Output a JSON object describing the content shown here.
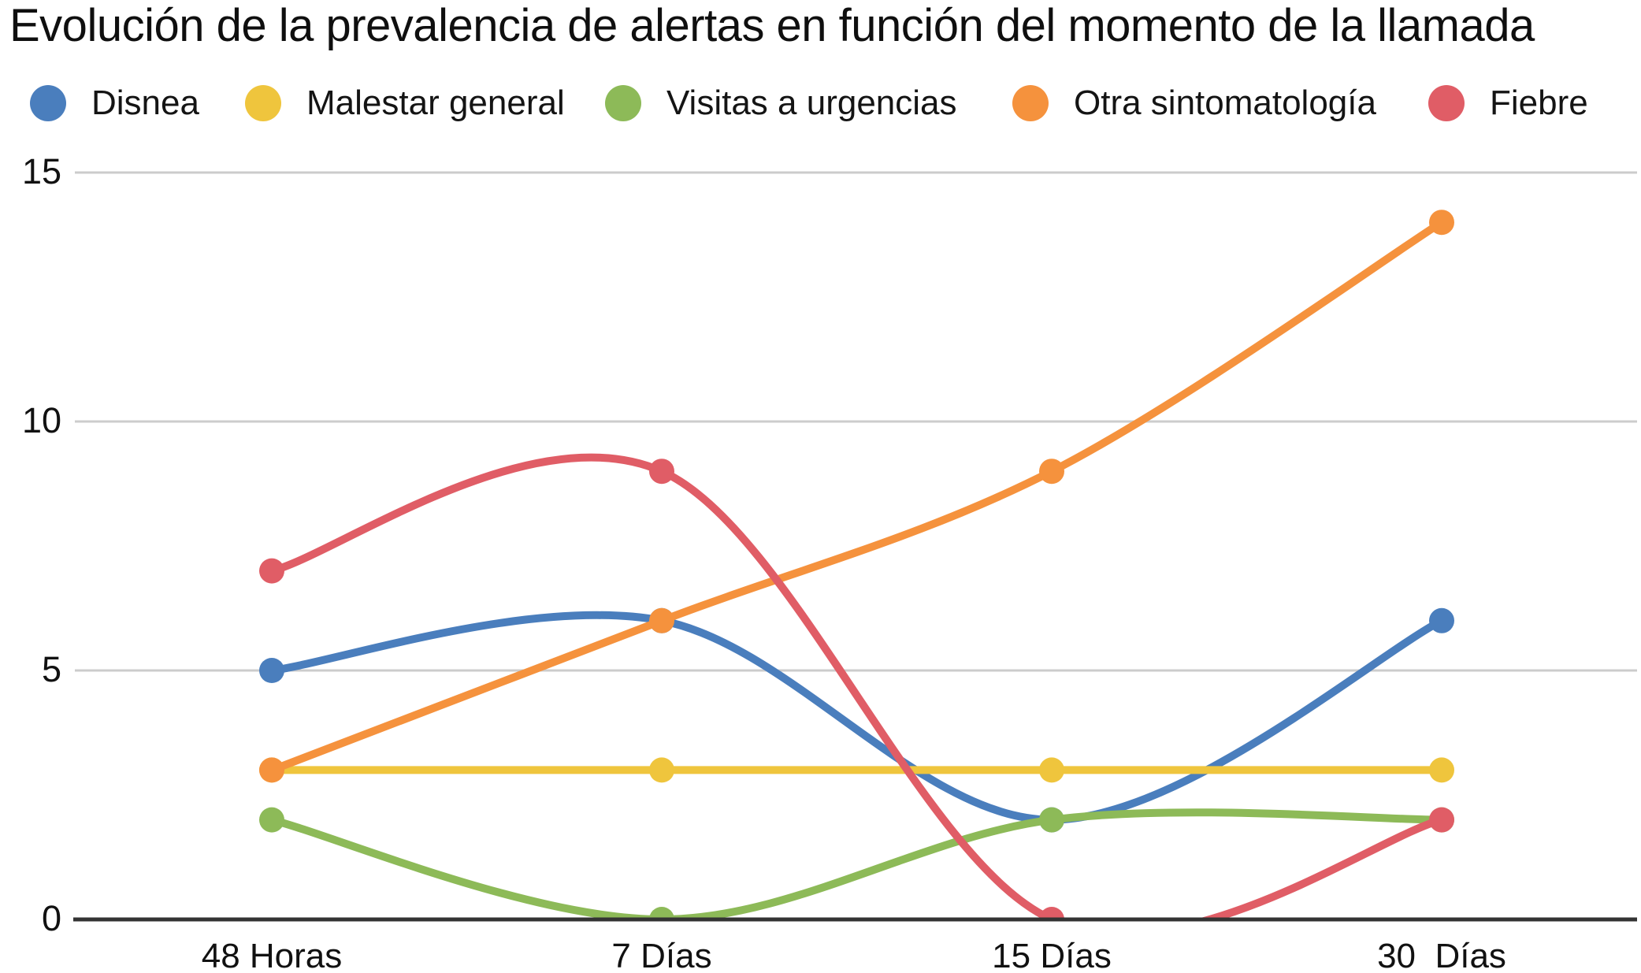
{
  "title": "Evolución de la prevalencia de alertas en función del momento de la llamada",
  "chart_data": {
    "type": "line",
    "smooth": true,
    "grid": "horizontal",
    "legend_position": "top",
    "categories": [
      "48 Horas",
      "7 Días",
      "15 Días",
      "30  Días"
    ],
    "series": [
      {
        "name": "Disnea",
        "color": "#4a7ebd",
        "values": [
          5,
          6,
          2,
          6
        ]
      },
      {
        "name": "Malestar general",
        "color": "#efc53d",
        "values": [
          3,
          3,
          3,
          3
        ]
      },
      {
        "name": "Visitas a urgencias",
        "color": "#8dba58",
        "values": [
          2,
          0,
          2,
          2
        ]
      },
      {
        "name": "Otra sintomatología",
        "color": "#f5923d",
        "values": [
          3,
          6,
          9,
          14
        ]
      },
      {
        "name": "Fiebre",
        "color": "#e05d66",
        "values": [
          7,
          9,
          0,
          2
        ]
      }
    ],
    "yticks": [
      0,
      5,
      10,
      15
    ],
    "ylim": [
      0,
      15
    ]
  },
  "colors": {
    "grid": "#cccccc",
    "axis": "#333333",
    "background": "#ffffff"
  }
}
